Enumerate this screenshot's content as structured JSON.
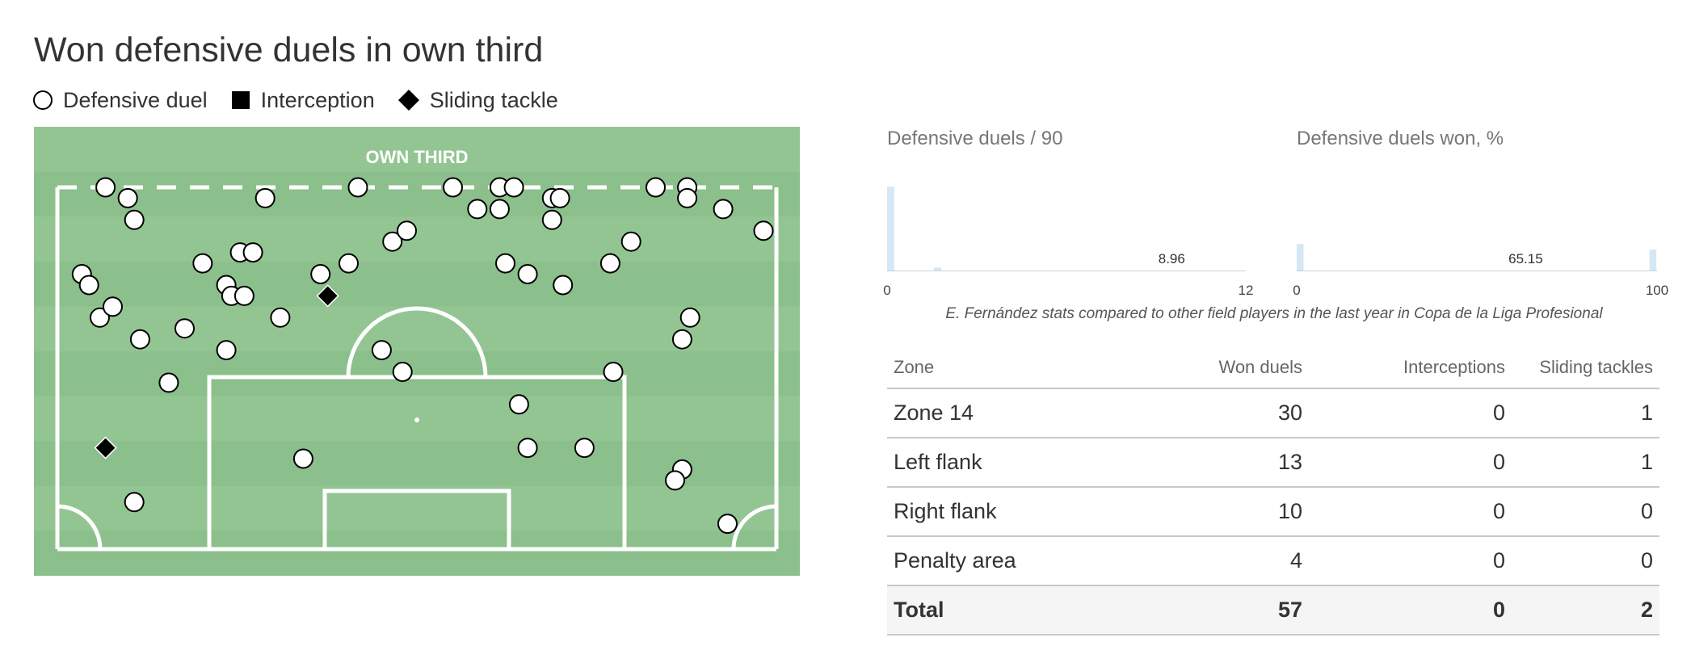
{
  "title": "Won defensive duels in own third",
  "legend": {
    "defensive_duel": "Defensive duel",
    "interception": "Interception",
    "sliding_tackle": "Sliding tackle"
  },
  "pitch": {
    "zone_label": "OWN THIRD",
    "colors": {
      "stripe_light": "#93c593",
      "stripe_dark": "#8bbf8b",
      "line": "#ffffff",
      "marker_fill": "#ffffff",
      "marker_stroke": "#000000"
    }
  },
  "chart_data": [
    {
      "type": "scatter",
      "title": "Won defensive duels in own third",
      "x_range": [
        0,
        100
      ],
      "y_range": [
        0,
        100
      ],
      "series": [
        {
          "name": "Defensive duel",
          "marker": "circle",
          "points": [
            [
              6.7,
              0
            ],
            [
              9.8,
              3.0
            ],
            [
              10.7,
              9.0
            ],
            [
              28.9,
              3.0
            ],
            [
              41.8,
              0
            ],
            [
              55.0,
              0
            ],
            [
              58.4,
              6.0
            ],
            [
              61.5,
              0
            ],
            [
              63.5,
              0
            ],
            [
              61.5,
              6.0
            ],
            [
              68.8,
              3.0
            ],
            [
              69.9,
              3.0
            ],
            [
              68.8,
              9.0
            ],
            [
              83.2,
              0
            ],
            [
              87.6,
              0
            ],
            [
              87.6,
              3.0
            ],
            [
              92.6,
              6.0
            ],
            [
              98.2,
              12.0
            ],
            [
              3.4,
              24.0
            ],
            [
              4.4,
              27.0
            ],
            [
              5.9,
              36.0
            ],
            [
              7.7,
              33.0
            ],
            [
              11.5,
              42.0
            ],
            [
              17.7,
              39.0
            ],
            [
              20.2,
              21.0
            ],
            [
              25.4,
              18.0
            ],
            [
              27.2,
              18.0
            ],
            [
              23.5,
              27.0
            ],
            [
              24.2,
              30.0
            ],
            [
              26.0,
              30.0
            ],
            [
              23.5,
              45.0
            ],
            [
              31.0,
              36.0
            ],
            [
              36.6,
              24.0
            ],
            [
              40.5,
              21.0
            ],
            [
              46.6,
              15.0
            ],
            [
              48.6,
              12.0
            ],
            [
              62.3,
              21.0
            ],
            [
              65.4,
              24.0
            ],
            [
              70.3,
              27.0
            ],
            [
              76.9,
              21.0
            ],
            [
              79.8,
              15.0
            ],
            [
              88.0,
              36.0
            ],
            [
              86.9,
              42.0
            ],
            [
              15.5,
              54.0
            ],
            [
              45.1,
              45.0
            ],
            [
              48.0,
              51.0
            ],
            [
              77.3,
              51.0
            ],
            [
              64.2,
              60.0
            ],
            [
              65.4,
              72.0
            ],
            [
              73.3,
              72.0
            ],
            [
              34.2,
              75.0
            ],
            [
              10.7,
              87.0
            ],
            [
              86.9,
              78.0
            ],
            [
              85.9,
              81.0
            ],
            [
              93.2,
              93.0
            ]
          ]
        },
        {
          "name": "Interception",
          "marker": "square",
          "points": []
        },
        {
          "name": "Sliding tackle",
          "marker": "diamond",
          "points": [
            [
              37.6,
              30.0
            ],
            [
              6.7,
              72.0
            ]
          ]
        }
      ]
    },
    {
      "type": "bar",
      "title": "Defensive duels / 90",
      "x_range": [
        0,
        12
      ],
      "tick_labels": [
        "0",
        "12"
      ],
      "highlight_label": "8.96",
      "highlight_index": 36,
      "highlight_color": "#6ab4e0",
      "bar_color": "#d4e8f5",
      "values": [
        88,
        0,
        0,
        0,
        0,
        0,
        3,
        0,
        0,
        0,
        0,
        0,
        0,
        0,
        0,
        0,
        0,
        0,
        0,
        0,
        0,
        0,
        0,
        0,
        0,
        0,
        0,
        0,
        0,
        0,
        0,
        0,
        0,
        0,
        0,
        0,
        0,
        0,
        0,
        0,
        0,
        0,
        0,
        0,
        0,
        0
      ]
    },
    {
      "type": "bar",
      "title": "Defensive duels won, %",
      "x_range": [
        0,
        100
      ],
      "tick_labels": [
        "0",
        "100"
      ],
      "highlight_label": "65.15",
      "highlight_index": 30,
      "highlight_color": "#6ab4e0",
      "bar_color": "#d4e8f5",
      "values": [
        28,
        0,
        0,
        0,
        0,
        0,
        0,
        0,
        0,
        0,
        0,
        0,
        0,
        0,
        0,
        0,
        0,
        0,
        0,
        0,
        0,
        0,
        0,
        0,
        0,
        0,
        0,
        0,
        0,
        0,
        0,
        0,
        0,
        0,
        0,
        0,
        0,
        0,
        0,
        0,
        0,
        0,
        0,
        0,
        0,
        0,
        0,
        22
      ]
    }
  ],
  "caption": "E. Fernández stats compared to other field players in the last year in Copa de la Liga Profesional",
  "table": {
    "headers": [
      "Zone",
      "Won duels",
      "Interceptions",
      "Sliding tackles"
    ],
    "rows": [
      [
        "Zone 14",
        "30",
        "0",
        "1"
      ],
      [
        "Left flank",
        "13",
        "0",
        "1"
      ],
      [
        "Right flank",
        "10",
        "0",
        "0"
      ],
      [
        "Penalty area",
        "4",
        "0",
        "0"
      ]
    ],
    "total": [
      "Total",
      "57",
      "0",
      "2"
    ]
  }
}
